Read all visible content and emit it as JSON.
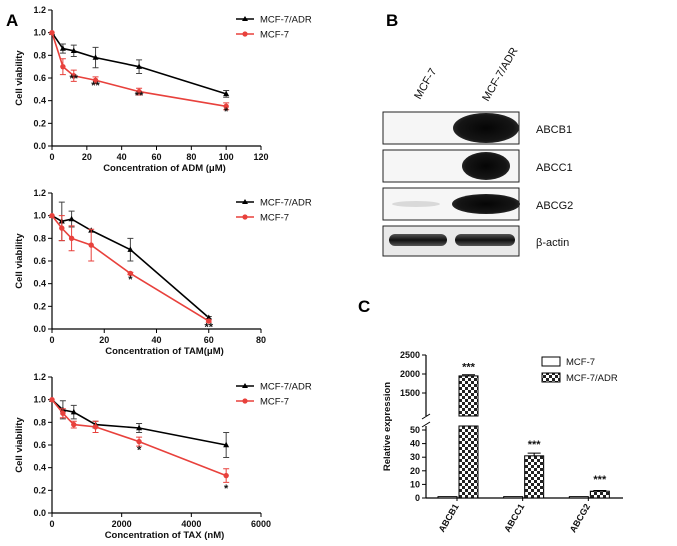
{
  "panel_labels": {
    "a": "A",
    "b": "B",
    "c": "C"
  },
  "chart_data": [
    {
      "type": "line",
      "xlabel": "Concentration of ADM (μM)",
      "ylabel": "Cell viability",
      "xlim": [
        0,
        120
      ],
      "ylim": [
        0,
        1.2
      ],
      "xticks": [
        0,
        20,
        40,
        60,
        80,
        100,
        120
      ],
      "yticks": [
        0.0,
        0.2,
        0.4,
        0.6,
        0.8,
        1.0,
        1.2
      ],
      "legend_position": "top-right",
      "series": [
        {
          "name": "MCF-7/ADR",
          "color": "#000000",
          "marker": "triangle",
          "x": [
            0,
            6.25,
            12.5,
            25,
            50,
            100
          ],
          "y": [
            1.0,
            0.86,
            0.84,
            0.78,
            0.7,
            0.46
          ],
          "err": [
            0,
            0.04,
            0.05,
            0.09,
            0.06,
            0.03
          ]
        },
        {
          "name": "MCF-7",
          "color": "#e8413c",
          "marker": "circle",
          "x": [
            0,
            6.25,
            12.5,
            25,
            50,
            100
          ],
          "y": [
            1.0,
            0.7,
            0.62,
            0.58,
            0.48,
            0.35
          ],
          "err": [
            0,
            0.07,
            0.05,
            0.03,
            0.03,
            0.03
          ]
        }
      ],
      "annotations": [
        {
          "x": 12.5,
          "y": 0.6,
          "text": "**"
        },
        {
          "x": 25,
          "y": 0.54,
          "text": "**"
        },
        {
          "x": 50,
          "y": 0.45,
          "text": "**"
        },
        {
          "x": 100,
          "y": 0.31,
          "text": "*"
        }
      ]
    },
    {
      "type": "line",
      "xlabel": "Concentration of TAM(μM)",
      "ylabel": "Cell viability",
      "xlim": [
        0,
        80
      ],
      "ylim": [
        0,
        1.2
      ],
      "xticks": [
        0,
        20,
        40,
        60,
        80
      ],
      "yticks": [
        0.0,
        0.2,
        0.4,
        0.6,
        0.8,
        1.0,
        1.2
      ],
      "legend_position": "top-right",
      "series": [
        {
          "name": "MCF-7/ADR",
          "color": "#000000",
          "marker": "triangle",
          "x": [
            0,
            3.75,
            7.5,
            15,
            30,
            60
          ],
          "y": [
            1.0,
            0.95,
            0.97,
            0.87,
            0.7,
            0.1
          ],
          "err": [
            0,
            0.17,
            0.07,
            0.0,
            0.1,
            0.01
          ]
        },
        {
          "name": "MCF-7",
          "color": "#e8413c",
          "marker": "circle",
          "x": [
            0,
            3.75,
            7.5,
            15,
            30,
            60
          ],
          "y": [
            1.0,
            0.89,
            0.8,
            0.74,
            0.49,
            0.07
          ],
          "err": [
            0,
            0.11,
            0.11,
            0.14,
            0.01,
            0.01
          ]
        }
      ],
      "annotations": [
        {
          "x": 30,
          "y": 0.44,
          "text": "*"
        },
        {
          "x": 60,
          "y": 0.02,
          "text": "**"
        }
      ]
    },
    {
      "type": "line",
      "xlabel": "Concentration of TAX (nM)",
      "ylabel": "Cell viability",
      "xlim": [
        0,
        6000
      ],
      "ylim": [
        0,
        1.2
      ],
      "xticks": [
        0,
        2000,
        4000,
        6000
      ],
      "yticks": [
        0.0,
        0.2,
        0.4,
        0.6,
        0.8,
        1.0,
        1.2
      ],
      "legend_position": "top-right",
      "series": [
        {
          "name": "MCF-7/ADR",
          "color": "#000000",
          "marker": "triangle",
          "x": [
            0,
            312.5,
            625,
            1250,
            2500,
            5000
          ],
          "y": [
            1.0,
            0.91,
            0.89,
            0.78,
            0.75,
            0.6
          ],
          "err": [
            0,
            0.08,
            0.06,
            0.03,
            0.04,
            0.11
          ]
        },
        {
          "name": "MCF-7",
          "color": "#e8413c",
          "marker": "circle",
          "x": [
            0,
            312.5,
            625,
            1250,
            2500,
            5000
          ],
          "y": [
            1.0,
            0.88,
            0.78,
            0.76,
            0.63,
            0.33
          ],
          "err": [
            0,
            0.04,
            0.03,
            0.05,
            0.04,
            0.06
          ]
        }
      ],
      "annotations": [
        {
          "x": 2500,
          "y": 0.56,
          "text": "*"
        },
        {
          "x": 5000,
          "y": 0.22,
          "text": "*"
        }
      ]
    },
    {
      "type": "bar",
      "ylabel": "Relative expression",
      "categories": [
        "ABCB1",
        "ABCC1",
        "ABCG2"
      ],
      "y_axis_break": true,
      "lower_ylim": [
        0,
        50
      ],
      "upper_ylim": [
        1000,
        2500
      ],
      "lower_yticks": [
        0,
        10,
        20,
        30,
        40,
        50
      ],
      "upper_yticks": [
        1500,
        2000,
        2500
      ],
      "legend_position": "top-right",
      "series": [
        {
          "name": "MCF-7",
          "pattern": "open",
          "values": [
            1,
            1,
            1
          ],
          "err": [
            0,
            0,
            0
          ]
        },
        {
          "name": "MCF-7/ADR",
          "pattern": "checker",
          "values": [
            1950,
            31,
            5
          ],
          "err": [
            30,
            2,
            0.5
          ]
        }
      ],
      "annotations": [
        {
          "category": "ABCB1",
          "text": "***"
        },
        {
          "category": "ABCC1",
          "text": "***"
        },
        {
          "category": "ABCG2",
          "text": "***"
        }
      ]
    }
  ],
  "western_blot": {
    "lanes": [
      "MCF-7",
      "MCF-7/ADR"
    ],
    "proteins": [
      "ABCB1",
      "ABCC1",
      "ABCG2",
      "β-actin"
    ]
  }
}
